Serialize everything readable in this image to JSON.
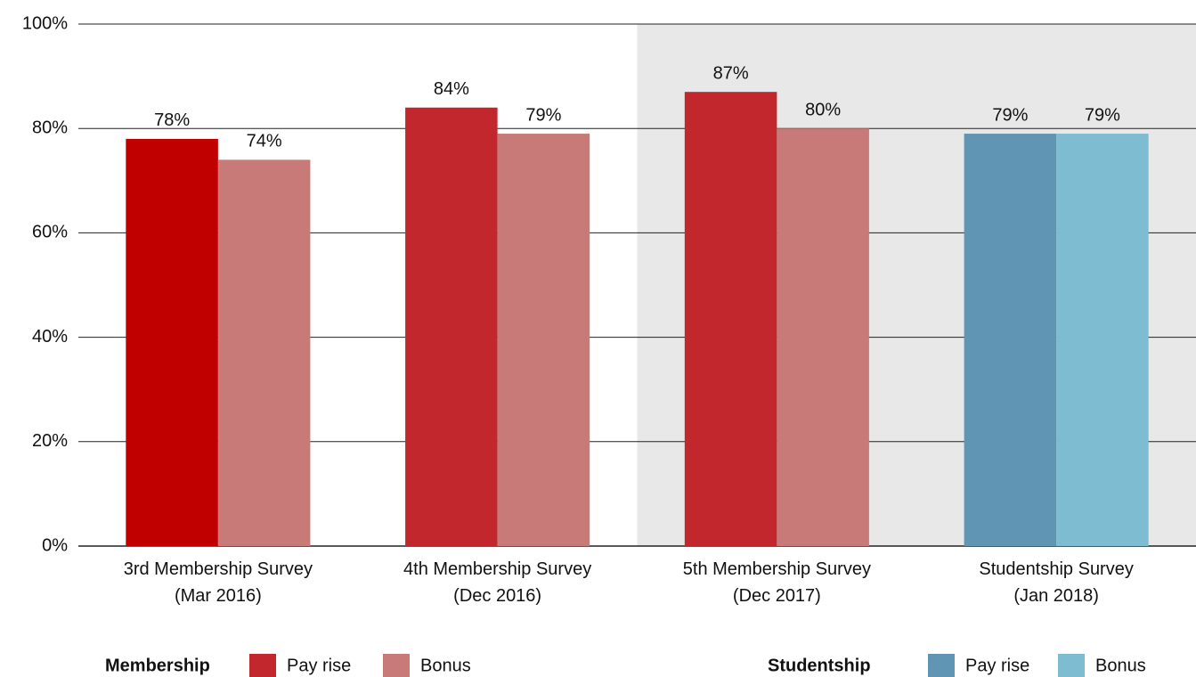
{
  "chart_data": {
    "type": "bar",
    "categories": [
      "3rd Membership Survey\n(Mar 2016)",
      "4th Membership Survey\n(Dec 2016)",
      "5th Membership Survey\n(Dec 2017)",
      "Studentship Survey\n(Jan 2018)"
    ],
    "series": [
      {
        "group": "Membership",
        "name": "Pay rise",
        "color": "#c1272d",
        "colors": [
          "#c00000",
          "#c1272d",
          "#c1272d",
          null
        ],
        "values": [
          78,
          84,
          87,
          null
        ],
        "value_labels": [
          "78%",
          "84%",
          "87%",
          null
        ]
      },
      {
        "group": "Membership",
        "name": "Bonus",
        "color": "#c87a78",
        "values": [
          74,
          79,
          80,
          null
        ],
        "value_labels": [
          "74%",
          "79%",
          "80%",
          null
        ]
      },
      {
        "group": "Studentship",
        "name": "Pay rise",
        "color": "#6096b4",
        "values": [
          null,
          null,
          null,
          79
        ],
        "value_labels": [
          null,
          null,
          null,
          "79%"
        ]
      },
      {
        "group": "Studentship",
        "name": "Bonus",
        "color": "#7dbcd1",
        "values": [
          null,
          null,
          null,
          79
        ],
        "value_labels": [
          null,
          null,
          null,
          "79%"
        ]
      }
    ],
    "ylim": [
      0,
      100
    ],
    "yticks": [
      {
        "value": 0,
        "label": "0%"
      },
      {
        "value": 20,
        "label": "20%"
      },
      {
        "value": 40,
        "label": "40%"
      },
      {
        "value": 60,
        "label": "60%"
      },
      {
        "value": 80,
        "label": "80%"
      },
      {
        "value": 100,
        "label": "100%"
      }
    ],
    "grid": true,
    "shade": {
      "from": 2,
      "to": 3,
      "color": "#e8e8e8"
    },
    "legend": "bottom"
  }
}
